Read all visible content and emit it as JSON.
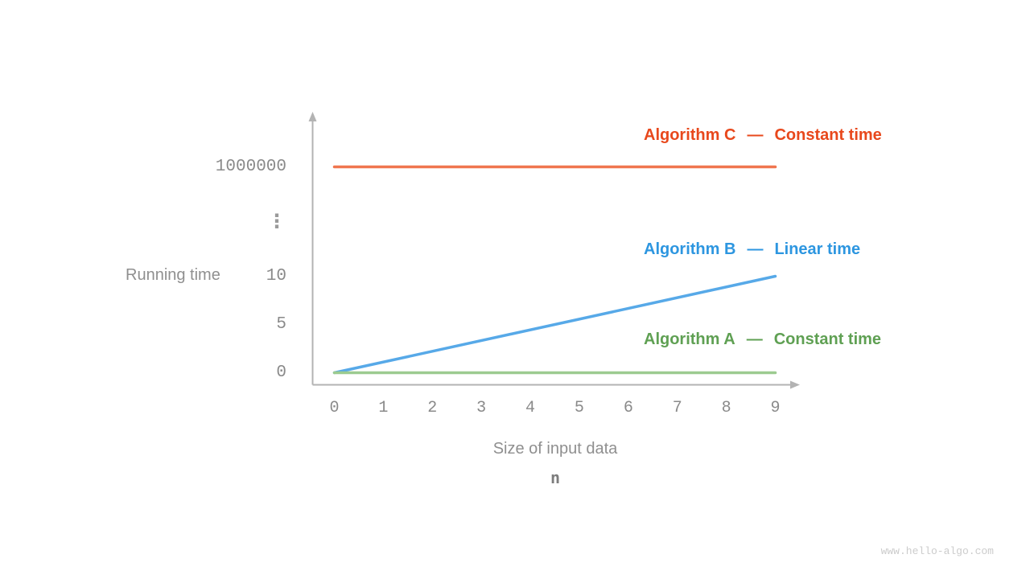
{
  "chart_data": {
    "type": "line",
    "title": "",
    "xlabel": "Size of input data",
    "xlabel_sub": "n",
    "ylabel": "Running time",
    "x_ticks": [
      "0",
      "1",
      "2",
      "3",
      "4",
      "5",
      "6",
      "7",
      "8",
      "9"
    ],
    "y_ticks": [
      "1000000",
      "⋮",
      "10",
      "5",
      "0"
    ],
    "y_tick_values": [
      0,
      5,
      10,
      1000000
    ],
    "x_range": [
      0,
      9
    ],
    "y_axis_has_break": true,
    "grid": false,
    "legend_position": "right-of-lines",
    "legend_separator": "—",
    "series": [
      {
        "name": "Algorithm C",
        "label": "Constant time",
        "color": "#e8481c",
        "line_color": "#f0764f",
        "points": [
          {
            "x": 0,
            "y": 1000000
          },
          {
            "x": 9,
            "y": 1000000
          }
        ]
      },
      {
        "name": "Algorithm B",
        "label": "Linear time",
        "color": "#2d96e0",
        "line_color": "#57a9e8",
        "points": [
          {
            "x": 0,
            "y": 0
          },
          {
            "x": 9,
            "y": 10
          }
        ]
      },
      {
        "name": "Algorithm A",
        "label": "Constant time",
        "color": "#5fa053",
        "line_color": "#9ccb90",
        "points": [
          {
            "x": 0,
            "y": 0
          },
          {
            "x": 9,
            "y": 0
          }
        ]
      }
    ]
  },
  "watermark": "www.hello-algo.com"
}
